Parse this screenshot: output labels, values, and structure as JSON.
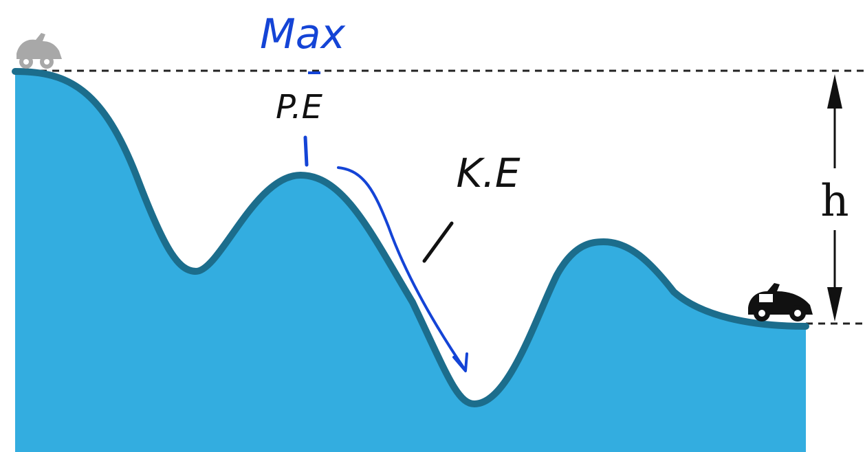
{
  "labels": {
    "max": "Max",
    "pe": "P.E",
    "ke": "K.E",
    "height": "h"
  },
  "colors": {
    "terrain_fill": "#33ADE0",
    "terrain_outline": "#1C6D8C",
    "annotation_blue": "#1444D6",
    "annotation_black": "#111111",
    "faded_car": "#9A9A9A",
    "car": "#111111"
  }
}
